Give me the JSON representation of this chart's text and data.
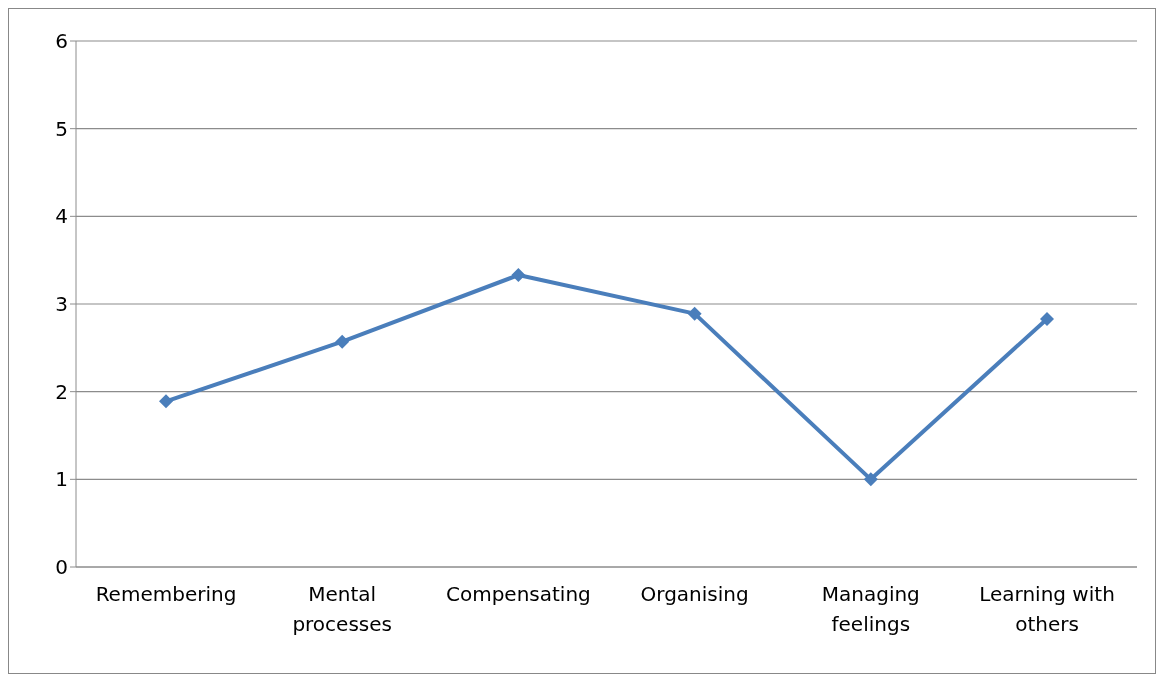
{
  "chart_data": {
    "type": "line",
    "categories": [
      "Remembering",
      "Mental processes",
      "Compensating",
      "Organising",
      "Managing feelings",
      "Learning with others"
    ],
    "values": [
      1.89,
      2.57,
      3.33,
      2.89,
      1.0,
      2.83
    ],
    "color": "#4a7ebb",
    "ylim": [
      0,
      6
    ],
    "yticks": [
      0,
      1,
      2,
      3,
      4,
      5,
      6
    ],
    "grid": "y",
    "marker": "diamond",
    "line_style": "solid"
  }
}
